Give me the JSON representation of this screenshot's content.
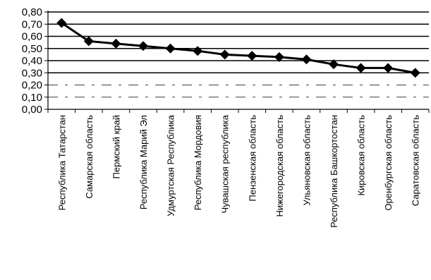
{
  "chart_data": {
    "type": "line",
    "categories": [
      "Республика Татарстан",
      "Самарская область",
      "Пермский край",
      "Республика Марий Эл",
      "Удмуртская Республика",
      "Республика Мордовия",
      "Чувашская республика",
      "Пензенская область",
      "Нижегородская область",
      "Ульяновская область",
      "Республика Башкортостан",
      "Кировская область",
      "Оренбургская область",
      "Саратовская область"
    ],
    "values": [
      0.71,
      0.56,
      0.54,
      0.52,
      0.5,
      0.48,
      0.45,
      0.44,
      0.43,
      0.41,
      0.37,
      0.34,
      0.34,
      0.3
    ],
    "ylim": [
      0,
      0.8
    ],
    "yticks": [
      "0,00",
      "0,10",
      "0,20",
      "0,30",
      "0,40",
      "0,50",
      "0,60",
      "0,70",
      "0,80"
    ],
    "grid": "horizontal",
    "legend": "none",
    "colors": {
      "line": "#000000",
      "marker": "#000000",
      "grid": "#000000",
      "background": "#ffffff"
    },
    "marker": "diamond"
  }
}
